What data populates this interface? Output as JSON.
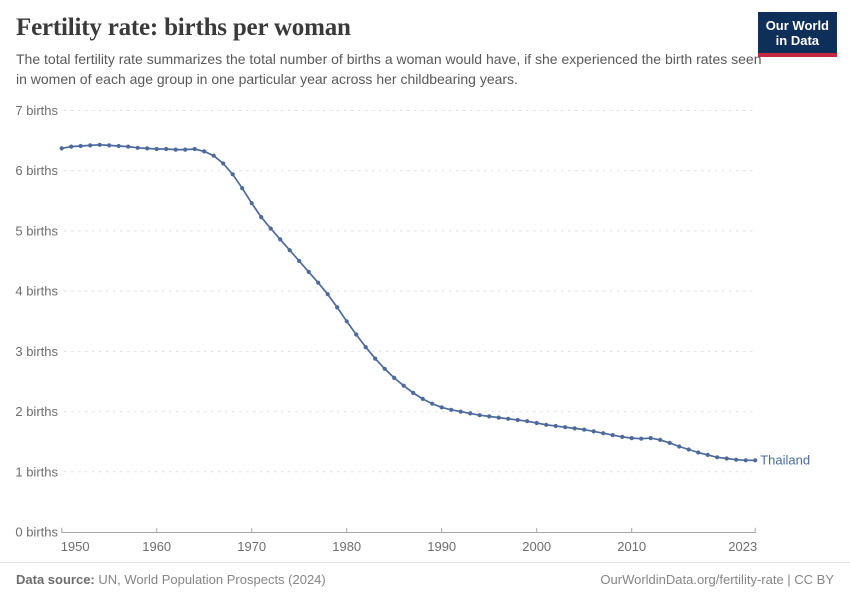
{
  "header": {
    "title": "Fertility rate: births per woman",
    "subtitle": "The total fertility rate summarizes the total number of births a woman would have, if she experienced the birth rates seen in women of each age group in one particular year across her childbearing years.",
    "logo": {
      "line1": "Our World",
      "line2": "in Data",
      "bg_color": "#0e2f5a",
      "accent_color": "#c52941"
    }
  },
  "chart_data": {
    "type": "line",
    "title": "Fertility rate: births per woman",
    "xlabel": "",
    "ylabel": "births",
    "xlim": [
      1950,
      2023
    ],
    "ylim": [
      0,
      7
    ],
    "grid": "horizontal-dashed",
    "legend_position": "end-of-line-label",
    "x_ticks": [
      1950,
      1960,
      1970,
      1980,
      1990,
      2000,
      2010,
      2023
    ],
    "y_ticks": [
      {
        "value": 0,
        "label": "0 births"
      },
      {
        "value": 1,
        "label": "1 births"
      },
      {
        "value": 2,
        "label": "2 births"
      },
      {
        "value": 3,
        "label": "3 births"
      },
      {
        "value": 4,
        "label": "4 births"
      },
      {
        "value": 5,
        "label": "5 births"
      },
      {
        "value": 6,
        "label": "6 births"
      },
      {
        "value": 7,
        "label": "7 births"
      }
    ],
    "series": [
      {
        "name": "Thailand",
        "color": "#4C6A9C",
        "years": [
          1950,
          1951,
          1952,
          1953,
          1954,
          1955,
          1956,
          1957,
          1958,
          1959,
          1960,
          1961,
          1962,
          1963,
          1964,
          1965,
          1966,
          1967,
          1968,
          1969,
          1970,
          1971,
          1972,
          1973,
          1974,
          1975,
          1976,
          1977,
          1978,
          1979,
          1980,
          1981,
          1982,
          1983,
          1984,
          1985,
          1986,
          1987,
          1988,
          1989,
          1990,
          1991,
          1992,
          1993,
          1994,
          1995,
          1996,
          1997,
          1998,
          1999,
          2000,
          2001,
          2002,
          2003,
          2004,
          2005,
          2006,
          2007,
          2008,
          2009,
          2010,
          2011,
          2012,
          2013,
          2014,
          2015,
          2016,
          2017,
          2018,
          2019,
          2020,
          2021,
          2022,
          2023
        ],
        "values": [
          6.37,
          6.4,
          6.41,
          6.42,
          6.43,
          6.42,
          6.41,
          6.4,
          6.38,
          6.37,
          6.36,
          6.36,
          6.35,
          6.35,
          6.36,
          6.32,
          6.25,
          6.12,
          5.94,
          5.71,
          5.46,
          5.23,
          5.04,
          4.86,
          4.68,
          4.5,
          4.32,
          4.14,
          3.95,
          3.73,
          3.5,
          3.28,
          3.07,
          2.88,
          2.71,
          2.56,
          2.43,
          2.31,
          2.21,
          2.13,
          2.07,
          2.03,
          2.0,
          1.97,
          1.94,
          1.92,
          1.9,
          1.88,
          1.86,
          1.84,
          1.81,
          1.78,
          1.76,
          1.74,
          1.72,
          1.7,
          1.67,
          1.64,
          1.61,
          1.58,
          1.56,
          1.55,
          1.56,
          1.53,
          1.48,
          1.42,
          1.37,
          1.32,
          1.28,
          1.24,
          1.22,
          1.2,
          1.19,
          1.19
        ]
      }
    ]
  },
  "footer": {
    "source_label": "Data source:",
    "source_text": "UN, World Population Prospects (2024)",
    "credit": "OurWorldinData.org/fertility-rate | CC BY"
  }
}
